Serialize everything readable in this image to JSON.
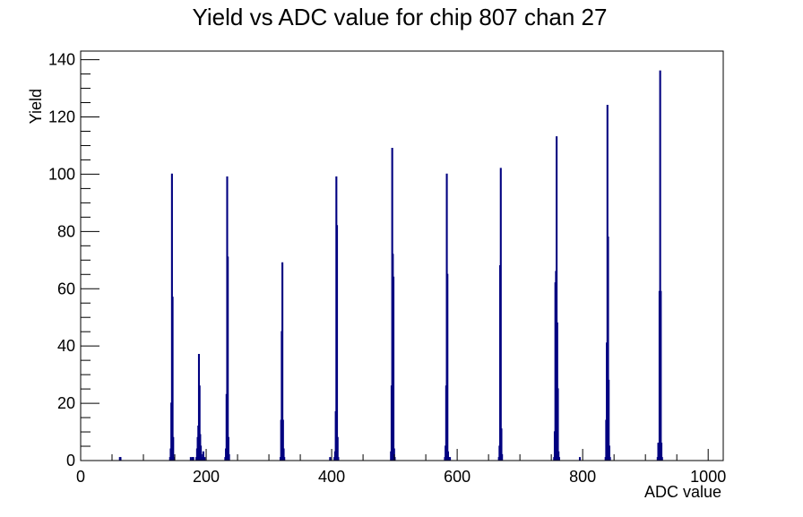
{
  "chart_data": {
    "type": "bar",
    "title": "Yield vs ADC value for chip 807 chan 27",
    "xlabel": "ADC value",
    "ylabel": "Yield",
    "xlim": [
      0,
      1024
    ],
    "ylim": [
      0,
      143
    ],
    "x_ticks": [
      "0",
      "200",
      "400",
      "600",
      "800",
      "1000"
    ],
    "y_ticks": [
      "0",
      "20",
      "40",
      "60",
      "80",
      "100",
      "120",
      "140"
    ],
    "grid": false,
    "legend": "none",
    "bin_width": 1,
    "line_color": "#000080",
    "series": [
      {
        "points": [
          [
            62,
            1
          ],
          [
            63,
            1
          ],
          [
            142,
            1
          ],
          [
            143,
            4
          ],
          [
            144,
            20
          ],
          [
            145,
            100
          ],
          [
            146,
            57
          ],
          [
            147,
            8
          ],
          [
            148,
            1
          ],
          [
            175,
            1
          ],
          [
            178,
            1
          ],
          [
            179,
            1
          ],
          [
            184,
            1
          ],
          [
            185,
            4
          ],
          [
            186,
            8
          ],
          [
            187,
            12
          ],
          [
            188,
            37
          ],
          [
            189,
            26
          ],
          [
            190,
            9
          ],
          [
            191,
            5
          ],
          [
            192,
            2
          ],
          [
            193,
            1
          ],
          [
            195,
            3
          ],
          [
            197,
            1
          ],
          [
            230,
            1
          ],
          [
            231,
            4
          ],
          [
            232,
            23
          ],
          [
            233,
            99
          ],
          [
            234,
            71
          ],
          [
            235,
            8
          ],
          [
            236,
            2
          ],
          [
            318,
            1
          ],
          [
            319,
            14
          ],
          [
            320,
            45
          ],
          [
            321,
            69
          ],
          [
            322,
            14
          ],
          [
            323,
            4
          ],
          [
            324,
            1
          ],
          [
            397,
            1
          ],
          [
            404,
            1
          ],
          [
            405,
            3
          ],
          [
            406,
            17
          ],
          [
            407,
            99
          ],
          [
            408,
            82
          ],
          [
            409,
            8
          ],
          [
            410,
            1
          ],
          [
            494,
            3
          ],
          [
            495,
            26
          ],
          [
            496,
            109
          ],
          [
            497,
            72
          ],
          [
            498,
            64
          ],
          [
            499,
            4
          ],
          [
            500,
            1
          ],
          [
            580,
            1
          ],
          [
            581,
            5
          ],
          [
            582,
            26
          ],
          [
            583,
            100
          ],
          [
            584,
            65
          ],
          [
            585,
            3
          ],
          [
            586,
            1
          ],
          [
            588,
            1
          ],
          [
            666,
            1
          ],
          [
            667,
            5
          ],
          [
            668,
            68
          ],
          [
            669,
            102
          ],
          [
            670,
            11
          ],
          [
            671,
            2
          ],
          [
            754,
            1
          ],
          [
            755,
            10
          ],
          [
            756,
            62
          ],
          [
            757,
            66
          ],
          [
            758,
            113
          ],
          [
            759,
            48
          ],
          [
            760,
            25
          ],
          [
            761,
            3
          ],
          [
            762,
            1
          ],
          [
            795,
            1
          ],
          [
            836,
            1
          ],
          [
            837,
            14
          ],
          [
            838,
            41
          ],
          [
            839,
            124
          ],
          [
            840,
            78
          ],
          [
            841,
            28
          ],
          [
            842,
            5
          ],
          [
            843,
            1
          ],
          [
            919,
            1
          ],
          [
            920,
            6
          ],
          [
            921,
            6
          ],
          [
            922,
            59
          ],
          [
            923,
            136
          ],
          [
            924,
            59
          ],
          [
            925,
            6
          ],
          [
            926,
            1
          ]
        ]
      }
    ]
  }
}
